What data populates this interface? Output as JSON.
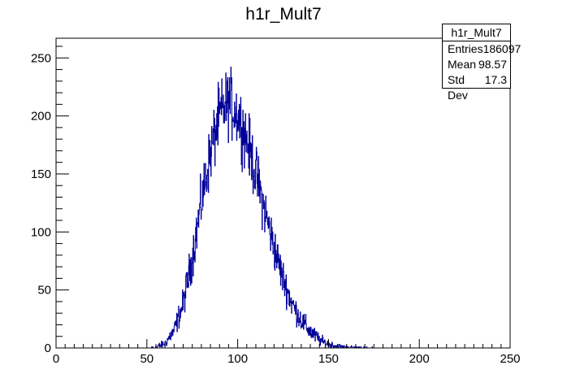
{
  "chart_data": {
    "type": "histogram",
    "title": "h1r_Mult7",
    "xlabel": "",
    "ylabel": "",
    "xlim": [
      0,
      250
    ],
    "ylim": [
      0,
      267
    ],
    "x_ticks": [
      0,
      50,
      100,
      150,
      200,
      250
    ],
    "y_ticks": [
      0,
      50,
      100,
      150,
      200,
      250
    ],
    "bin_width": 0.2,
    "line_color": "#000099",
    "envelope": {
      "x": [
        50,
        55,
        60,
        65,
        70,
        75,
        80,
        85,
        90,
        95,
        100,
        105,
        110,
        115,
        120,
        125,
        130,
        135,
        140,
        145,
        150,
        155,
        160,
        165,
        170,
        175,
        180,
        190,
        250
      ],
      "y": [
        0,
        0.5,
        4,
        15,
        38,
        78,
        125,
        168,
        200,
        212,
        202,
        180,
        150,
        118,
        87,
        60,
        38,
        24,
        14,
        7,
        3,
        1.5,
        0.6,
        0.3,
        0.15,
        0.05,
        0,
        0,
        0
      ]
    },
    "stats": {
      "name": "h1r_Mult7",
      "rows": [
        {
          "label": "Entries",
          "value": "186097"
        },
        {
          "label": "Mean",
          "value": "98.57"
        },
        {
          "label": "Std Dev",
          "value": "17.3"
        }
      ]
    }
  }
}
